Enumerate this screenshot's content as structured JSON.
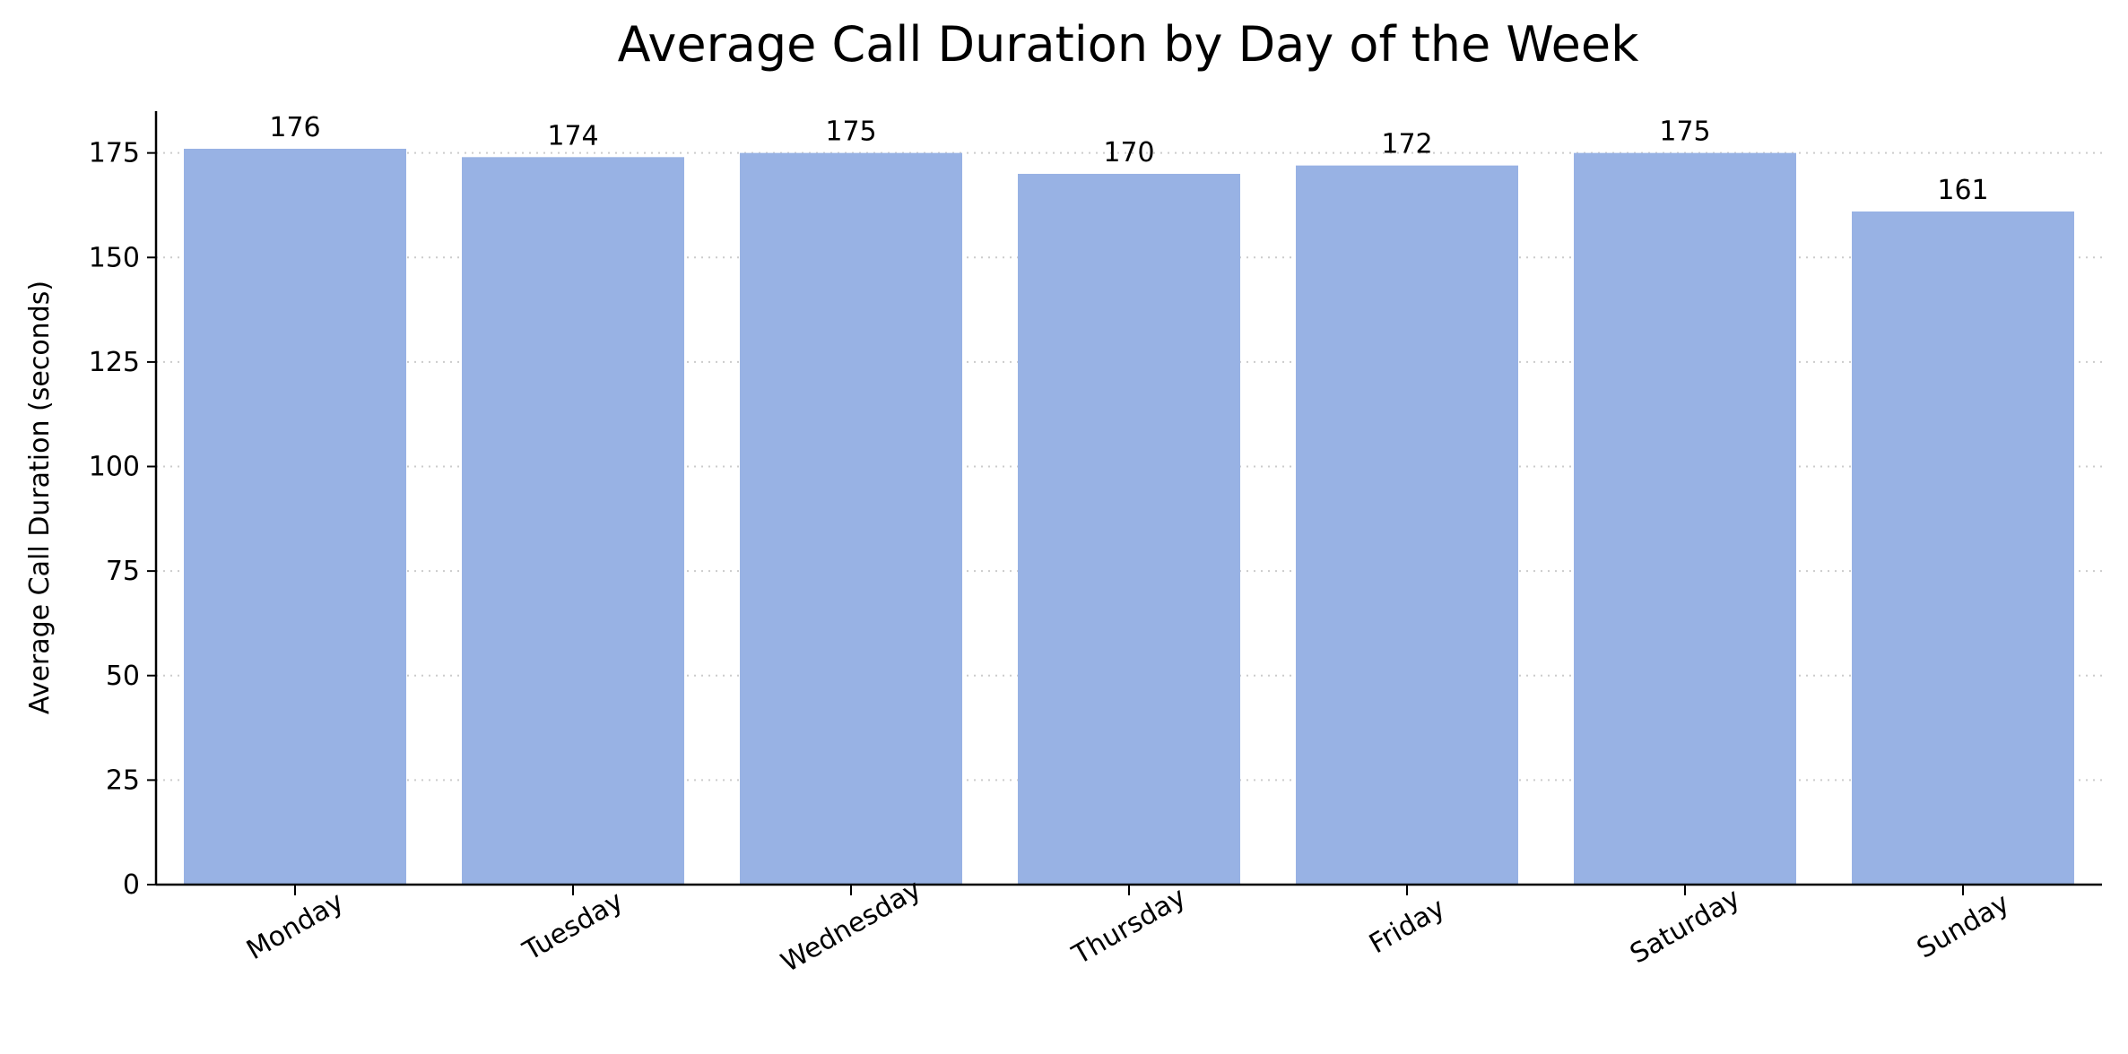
{
  "chart_data": {
    "type": "bar",
    "title": "Average Call Duration by Day of the Week",
    "xlabel": "",
    "ylabel": "Average Call Duration (seconds)",
    "categories": [
      "Monday",
      "Tuesday",
      "Wednesday",
      "Thursday",
      "Friday",
      "Saturday",
      "Sunday"
    ],
    "values": [
      176,
      174,
      175,
      170,
      172,
      175,
      161
    ],
    "data_labels": [
      "176",
      "174",
      "175",
      "170",
      "172",
      "175",
      "161"
    ],
    "ylim": [
      0,
      185
    ],
    "yticks": [
      0,
      25,
      50,
      75,
      100,
      125,
      150,
      175
    ],
    "ytick_labels": [
      "0",
      "25",
      "50",
      "75",
      "100",
      "125",
      "150",
      "175"
    ],
    "grid": "y dotted",
    "legend": "none",
    "colors": {
      "bar": "#98b2e4",
      "grid": "#cccccc",
      "axis": "#000000",
      "text": "#000000"
    }
  }
}
